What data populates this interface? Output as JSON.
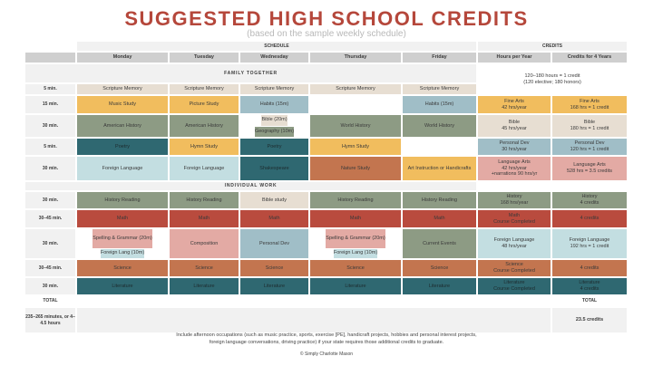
{
  "title": "SUGGESTED HIGH SCHOOL CREDITS",
  "subtitle": "(based on the sample weekly schedule)",
  "headers": {
    "schedule": "SCHEDULE",
    "credits": "CREDITS",
    "days": [
      "Monday",
      "Tuesday",
      "Wednesday",
      "Thursday",
      "Friday"
    ],
    "hours": "Hours per Year",
    "credits4": "Credits for 4 Years"
  },
  "sections": {
    "family": "FAMILY TOGETHER",
    "individual": "INDIVIDUAL WORK"
  },
  "credit_rule": [
    "120–180 hours = 1 credit",
    "(120 elective; 180 honors)"
  ],
  "family_rows": [
    {
      "time": "5 min.",
      "cells": [
        "Scripture Memory",
        "Scripture Memory",
        "Scripture Memory",
        "Scripture Memory",
        "Scripture Memory"
      ]
    },
    {
      "time": "15 min.",
      "cells": [
        "Music Study",
        "Picture Study",
        "Habits (15m)",
        "",
        "Habits (15m)"
      ],
      "hours": [
        "Fine Arts",
        "42 hrs/year"
      ],
      "credits": [
        "Fine Arts",
        "168 hrs = 1 credit"
      ]
    },
    {
      "time": "30 min.",
      "cells": [
        "American History",
        "American History",
        [
          "Bible (20m)",
          "Geography (10m)"
        ],
        "World History",
        "World History"
      ],
      "hours": [
        "Bible",
        "45 hrs/year"
      ],
      "credits": [
        "Bible",
        "180 hrs = 1 credit"
      ]
    },
    {
      "time": "5 min.",
      "cells": [
        "Poetry",
        "Hymn Study",
        "Poetry",
        "Hymn Study",
        ""
      ],
      "hours": [
        "Personal Dev",
        "30 hrs/year"
      ],
      "credits": [
        "Personal Dev",
        "120 hrs = 1 credit"
      ]
    },
    {
      "time": "30 min.",
      "cells": [
        "Foreign Language",
        "Foreign Language",
        "Shakespeare",
        "Nature Study",
        "Art Instruction or Handicrafts"
      ],
      "hours": [
        "Language Arts",
        "42 hrs/year",
        "+narrations 90 hrs/yr"
      ],
      "credits": [
        "Language Arts",
        "528 hrs = 3.5 credits"
      ]
    }
  ],
  "individual_rows": [
    {
      "time": "30 min.",
      "cells": [
        "History Reading",
        "History Reading",
        "Bible study",
        "History Reading",
        "History Reading"
      ],
      "hours": [
        "History",
        "168 hrs/year"
      ],
      "credits": [
        "History",
        "4 credits"
      ]
    },
    {
      "time": "30–45 min.",
      "cells": [
        "Math",
        "Math",
        "Math",
        "Math",
        "Math"
      ],
      "hours": [
        "Math",
        "Course Completed"
      ],
      "credits": [
        "4 credits"
      ]
    },
    {
      "time": "30 min.",
      "cells": [
        [
          "Spelling & Grammar (20m)",
          "Foreign Lang (10m)"
        ],
        "Composition",
        "Personal Dev",
        [
          "Spelling & Grammar (20m)",
          "Foreign Lang (10m)"
        ],
        "Current Events"
      ],
      "hours": [
        "Foreign Language",
        "48 hrs/year"
      ],
      "credits": [
        "Foreign Language",
        "192 hrs = 1 credit"
      ]
    },
    {
      "time": "30–45 min.",
      "cells": [
        "Science",
        "Science",
        "Science",
        "Science",
        "Science"
      ],
      "hours": [
        "Science",
        "Course Completed"
      ],
      "credits": [
        "4 credits"
      ]
    },
    {
      "time": "30 min.",
      "cells": [
        "Literature",
        "Literature",
        "Literature",
        "Literature",
        "Literature"
      ],
      "hours": [
        "Literature",
        "Course Completed"
      ],
      "credits": [
        "Literature",
        "4 credits"
      ]
    }
  ],
  "total": {
    "label": "TOTAL",
    "time": "235–265 minutes, or 4–4.5 hours",
    "credits_label": "TOTAL",
    "credits": "23.5 credits"
  },
  "footnote": [
    "Include afternoon occupations (such as music practice, sports, exercise [PE], handicraft projects, hobbies and personal interest projects,",
    "foreign language conversations, driving practice) if your state requires those additional credits to graduate."
  ],
  "copyright": "© Simply Charlotte Mason"
}
